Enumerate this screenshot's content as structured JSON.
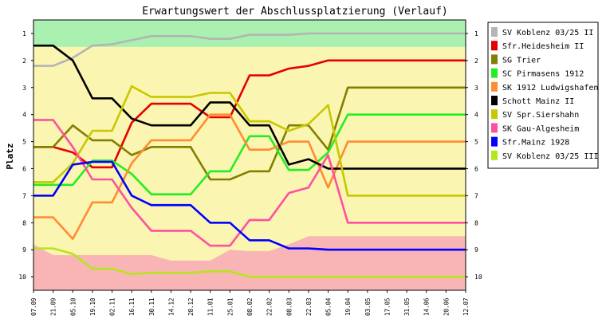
{
  "chart_data": {
    "type": "line",
    "title": "Erwartungswert der Abschlussplatzierung (Verlauf)",
    "ylabel": "Platz",
    "xlabel": "",
    "ylim": [
      0.5,
      10.5
    ],
    "y_inverted": true,
    "y_ticks": [
      "1",
      "2",
      "3",
      "4",
      "5",
      "6",
      "7",
      "8",
      "9",
      "10"
    ],
    "categories": [
      "07.09",
      "21.09",
      "05.10",
      "19.10",
      "02.11",
      "16.11",
      "30.11",
      "14.12",
      "28.12",
      "11.01",
      "25.01",
      "08.02",
      "22.02",
      "08.03",
      "22.03",
      "05.04",
      "19.04",
      "03.05",
      "17.05",
      "31.05",
      "14.06",
      "28.06",
      "12.07"
    ],
    "legend_position": "right",
    "grid": false,
    "bands": {
      "top_zone_color": "#aaf0b0",
      "middle_zone_color": "#fbf5b2",
      "bottom_zone_color": "#f9b5b5",
      "top_zone_lower_edge": [
        1.5,
        1.5,
        1.5,
        1.5,
        1.5,
        1.5,
        1.5,
        1.5,
        1.5,
        1.5,
        1.5,
        1.5,
        1.5,
        1.5,
        1.5,
        1.5,
        1.5,
        1.5,
        1.5,
        1.5,
        1.5,
        1.5,
        1.5
      ],
      "bottom_zone_upper_edge": [
        8.8,
        9.2,
        9.2,
        9.2,
        9.2,
        9.2,
        9.2,
        9.4,
        9.4,
        9.4,
        9.0,
        9.05,
        9.05,
        8.8,
        8.5,
        8.5,
        8.5,
        8.5,
        8.5,
        8.5,
        8.5,
        8.5,
        8.5
      ]
    },
    "series": [
      {
        "name": "SV Koblenz 03/25 II",
        "color": "#b4b4b4",
        "values": [
          2.2,
          2.2,
          1.9,
          1.45,
          1.4,
          1.25,
          1.1,
          1.1,
          1.1,
          1.2,
          1.2,
          1.05,
          1.05,
          1.05,
          1.0,
          1.0,
          1.0,
          1.0,
          1.0,
          1.0,
          1.0,
          1.0,
          1.0
        ]
      },
      {
        "name": "Sfr.Heidesheim   II",
        "color": "#e60000",
        "values": [
          5.2,
          5.2,
          5.4,
          5.95,
          5.95,
          4.3,
          3.6,
          3.6,
          3.6,
          4.1,
          4.1,
          2.55,
          2.55,
          2.3,
          2.2,
          2.0,
          2.0,
          2.0,
          2.0,
          2.0,
          2.0,
          2.0,
          2.0
        ]
      },
      {
        "name": "SG Trier",
        "color": "#808000",
        "values": [
          5.2,
          5.2,
          4.4,
          4.95,
          4.95,
          5.5,
          5.2,
          5.2,
          5.2,
          6.4,
          6.4,
          6.1,
          6.1,
          4.4,
          4.4,
          5.3,
          3.0,
          3.0,
          3.0,
          3.0,
          3.0,
          3.0,
          3.0
        ]
      },
      {
        "name": "SC Pirmasens 1912",
        "color": "#22ee22",
        "values": [
          6.6,
          6.6,
          6.6,
          5.7,
          5.7,
          6.2,
          6.95,
          6.95,
          6.95,
          6.1,
          6.1,
          4.8,
          4.8,
          6.05,
          6.05,
          5.4,
          4.0,
          4.0,
          4.0,
          4.0,
          4.0,
          4.0,
          4.0
        ]
      },
      {
        "name": "SK 1912 Ludwigshafen",
        "color": "#ff8c32",
        "values": [
          7.8,
          7.8,
          8.6,
          7.25,
          7.25,
          5.8,
          4.95,
          4.95,
          4.95,
          4.0,
          4.0,
          5.3,
          5.3,
          5.0,
          5.0,
          6.7,
          5.0,
          5.0,
          5.0,
          5.0,
          5.0,
          5.0,
          5.0
        ]
      },
      {
        "name": "Schott Mainz II",
        "color": "#000000",
        "values": [
          1.45,
          1.45,
          2.0,
          3.4,
          3.4,
          4.15,
          4.4,
          4.4,
          4.4,
          3.55,
          3.55,
          4.4,
          4.4,
          5.85,
          5.65,
          6.0,
          6.0,
          6.0,
          6.0,
          6.0,
          6.0,
          6.0,
          6.0
        ]
      },
      {
        "name": "SV Spr.Siershahn",
        "color": "#c8c800",
        "values": [
          6.5,
          6.5,
          5.8,
          4.6,
          4.6,
          2.95,
          3.35,
          3.35,
          3.35,
          3.2,
          3.2,
          4.25,
          4.25,
          4.6,
          4.35,
          3.65,
          7.0,
          7.0,
          7.0,
          7.0,
          7.0,
          7.0,
          7.0
        ]
      },
      {
        "name": "SK Gau-Algesheim",
        "color": "#ff50a0",
        "values": [
          4.2,
          4.2,
          5.2,
          6.4,
          6.4,
          7.45,
          8.3,
          8.3,
          8.3,
          8.85,
          8.85,
          7.9,
          7.9,
          6.9,
          6.7,
          5.5,
          8.0,
          8.0,
          8.0,
          8.0,
          8.0,
          8.0,
          8.0
        ]
      },
      {
        "name": "Sfr.Mainz 1928",
        "color": "#0000ff",
        "values": [
          7.0,
          7.0,
          5.85,
          5.75,
          5.75,
          7.0,
          7.35,
          7.35,
          7.35,
          8.0,
          8.0,
          8.65,
          8.65,
          8.95,
          8.95,
          9.0,
          9.0,
          9.0,
          9.0,
          9.0,
          9.0,
          9.0,
          9.0
        ]
      },
      {
        "name": "SV Koblenz 03/25 III",
        "color": "#b4e61e",
        "values": [
          8.95,
          8.95,
          9.15,
          9.7,
          9.7,
          9.9,
          9.85,
          9.85,
          9.85,
          9.8,
          9.8,
          10.0,
          10.0,
          10.0,
          10.0,
          10.0,
          10.0,
          10.0,
          10.0,
          10.0,
          10.0,
          10.0,
          10.0
        ]
      }
    ]
  }
}
